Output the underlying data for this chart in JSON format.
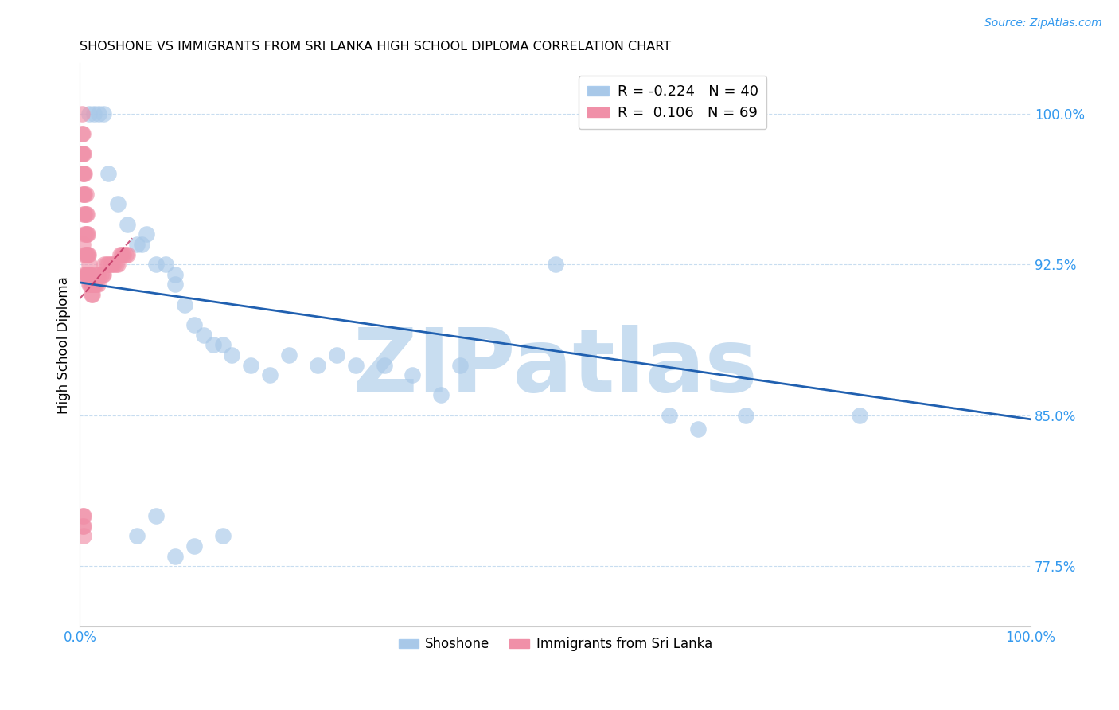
{
  "title": "SHOSHONE VS IMMIGRANTS FROM SRI LANKA HIGH SCHOOL DIPLOMA CORRELATION CHART",
  "source": "Source: ZipAtlas.com",
  "ylabel": "High School Diploma",
  "xlim": [
    0.0,
    1.0
  ],
  "ylim": [
    0.745,
    1.025
  ],
  "yticks": [
    0.775,
    0.85,
    0.925,
    1.0
  ],
  "ytick_labels": [
    "77.5%",
    "85.0%",
    "92.5%",
    "100.0%"
  ],
  "legend_blue_R": "-0.224",
  "legend_blue_N": "40",
  "legend_pink_R": "0.106",
  "legend_pink_N": "69",
  "blue_color": "#a8c8e8",
  "pink_color": "#f090a8",
  "trend_blue_color": "#2060b0",
  "trend_pink_color": "#c03060",
  "watermark": "ZIPatlas",
  "watermark_color": "#c8ddf0",
  "blue_scatter_x": [
    0.01,
    0.015,
    0.02,
    0.025,
    0.03,
    0.04,
    0.05,
    0.06,
    0.065,
    0.07,
    0.08,
    0.09,
    0.1,
    0.1,
    0.11,
    0.12,
    0.13,
    0.14,
    0.15,
    0.16,
    0.18,
    0.2,
    0.22,
    0.25,
    0.27,
    0.29,
    0.32,
    0.35,
    0.38,
    0.4,
    0.5,
    0.62,
    0.65,
    0.7,
    0.82,
    0.06,
    0.08,
    0.1,
    0.12,
    0.15
  ],
  "blue_scatter_y": [
    1.0,
    1.0,
    1.0,
    1.0,
    0.97,
    0.955,
    0.945,
    0.935,
    0.935,
    0.94,
    0.925,
    0.925,
    0.915,
    0.92,
    0.905,
    0.895,
    0.89,
    0.885,
    0.885,
    0.88,
    0.875,
    0.87,
    0.88,
    0.875,
    0.88,
    0.875,
    0.875,
    0.87,
    0.86,
    0.875,
    0.925,
    0.85,
    0.843,
    0.85,
    0.85,
    0.79,
    0.8,
    0.78,
    0.785,
    0.79
  ],
  "pink_scatter_x": [
    0.002,
    0.002,
    0.002,
    0.003,
    0.003,
    0.003,
    0.003,
    0.004,
    0.004,
    0.004,
    0.004,
    0.005,
    0.005,
    0.005,
    0.005,
    0.005,
    0.005,
    0.006,
    0.006,
    0.006,
    0.006,
    0.006,
    0.007,
    0.007,
    0.007,
    0.007,
    0.008,
    0.008,
    0.008,
    0.009,
    0.009,
    0.01,
    0.01,
    0.01,
    0.011,
    0.011,
    0.012,
    0.012,
    0.013,
    0.013,
    0.014,
    0.015,
    0.016,
    0.017,
    0.018,
    0.019,
    0.02,
    0.022,
    0.024,
    0.025,
    0.026,
    0.028,
    0.03,
    0.032,
    0.034,
    0.036,
    0.038,
    0.04,
    0.042,
    0.044,
    0.046,
    0.048,
    0.05,
    0.003,
    0.003,
    0.004,
    0.004,
    0.004,
    0.003
  ],
  "pink_scatter_y": [
    1.0,
    0.99,
    0.98,
    0.99,
    0.98,
    0.97,
    0.96,
    0.98,
    0.97,
    0.96,
    0.95,
    0.97,
    0.96,
    0.95,
    0.94,
    0.93,
    0.92,
    0.96,
    0.95,
    0.94,
    0.93,
    0.92,
    0.95,
    0.94,
    0.93,
    0.92,
    0.94,
    0.93,
    0.92,
    0.93,
    0.92,
    0.925,
    0.92,
    0.915,
    0.92,
    0.915,
    0.915,
    0.91,
    0.915,
    0.91,
    0.915,
    0.915,
    0.915,
    0.915,
    0.92,
    0.915,
    0.92,
    0.92,
    0.92,
    0.92,
    0.925,
    0.925,
    0.925,
    0.925,
    0.925,
    0.925,
    0.925,
    0.925,
    0.93,
    0.93,
    0.93,
    0.93,
    0.93,
    0.8,
    0.795,
    0.8,
    0.795,
    0.79,
    0.935
  ],
  "blue_trend_x0": 0.0,
  "blue_trend_y0": 0.916,
  "blue_trend_x1": 1.0,
  "blue_trend_y1": 0.848,
  "pink_trend_x0": 0.0,
  "pink_trend_y0": 0.908,
  "pink_trend_x1": 0.055,
  "pink_trend_y1": 0.938
}
